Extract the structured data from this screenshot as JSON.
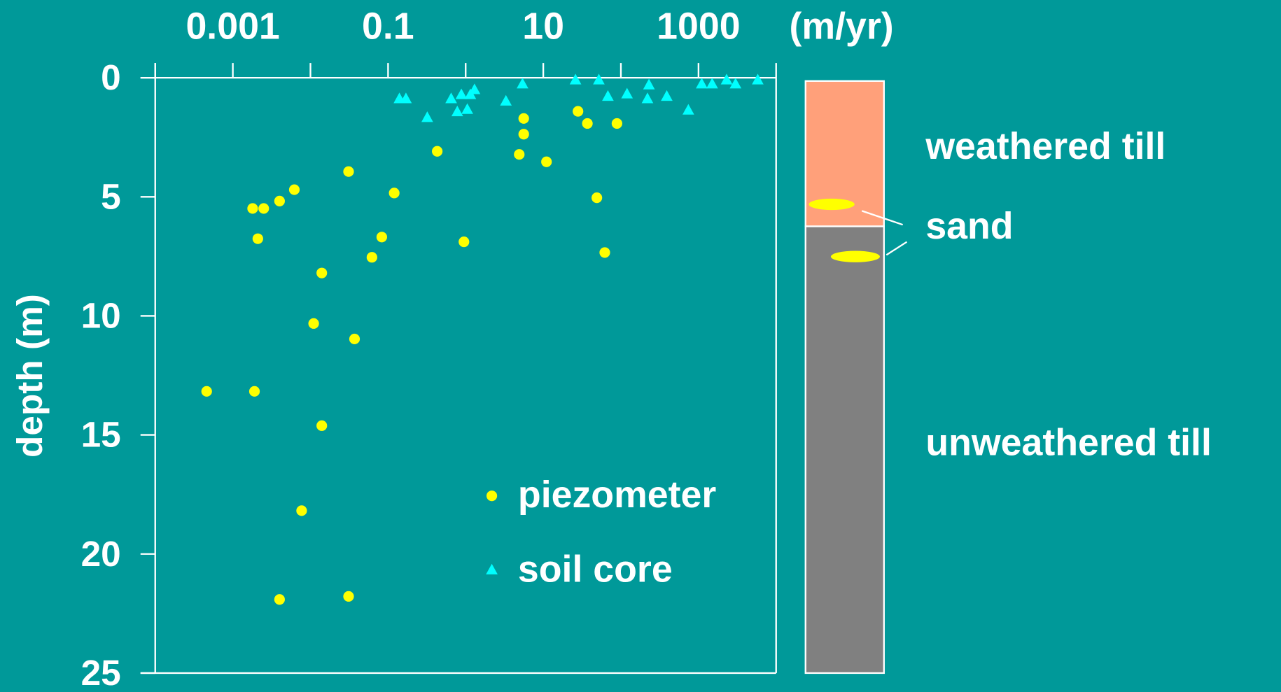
{
  "chart_data": {
    "type": "scatter",
    "x_unit_label": "(m/yr)",
    "y_label": "depth (m)",
    "x_scale": "log",
    "y_inverted": true,
    "xlim": [
      0.0001,
      10000
    ],
    "xticks": [
      {
        "value": 0.001,
        "label": "0.001"
      },
      0.1,
      10,
      1000
    ],
    "xminorticks": [
      0.0001,
      0.01,
      1,
      100,
      10000
    ],
    "ylim": [
      0,
      25
    ],
    "yticks": [
      0,
      5,
      10,
      15,
      20,
      25
    ],
    "legend": "lower right",
    "series": [
      {
        "name": "piezometer",
        "color": "#ffff00",
        "marker": "circle",
        "x": [
          0.031,
          0.0018,
          0.0025,
          0.004,
          0.0062,
          0.0021,
          0.12,
          0.083,
          0.062,
          0.014,
          0.011,
          0.037,
          0.00046,
          0.0019,
          0.014,
          0.0077,
          0.004,
          0.031,
          0.43,
          0.95,
          5.6,
          5.6,
          4.9,
          11,
          28,
          37,
          89,
          49,
          62
        ],
        "values": [
          3.94,
          5.49,
          5.49,
          5.18,
          4.7,
          6.76,
          4.84,
          6.69,
          7.54,
          8.2,
          10.32,
          10.97,
          13.17,
          13.17,
          14.61,
          18.18,
          21.91,
          21.78,
          3.09,
          6.89,
          1.71,
          2.37,
          3.22,
          3.53,
          1.41,
          1.92,
          1.92,
          5.04,
          7.34
        ]
      },
      {
        "name": "soil core",
        "color": "#00ffff",
        "marker": "triangle",
        "x": [
          0.14,
          0.17,
          0.32,
          0.65,
          0.78,
          0.88,
          1.05,
          1.15,
          1.3,
          3.3,
          5.4,
          26,
          52,
          68,
          120,
          220,
          230,
          390,
          740,
          1100,
          1500,
          2300,
          3000,
          5800
        ],
        "values": [
          0.89,
          0.89,
          1.68,
          0.89,
          1.44,
          0.72,
          1.34,
          0.72,
          0.51,
          0.99,
          0.27,
          0.1,
          0.1,
          0.79,
          0.69,
          0.89,
          0.31,
          0.79,
          1.37,
          0.27,
          0.27,
          0.1,
          0.27,
          0.1
        ]
      }
    ]
  },
  "column": {
    "labels": [
      "weathered till",
      "sand",
      "unweathered till"
    ]
  }
}
